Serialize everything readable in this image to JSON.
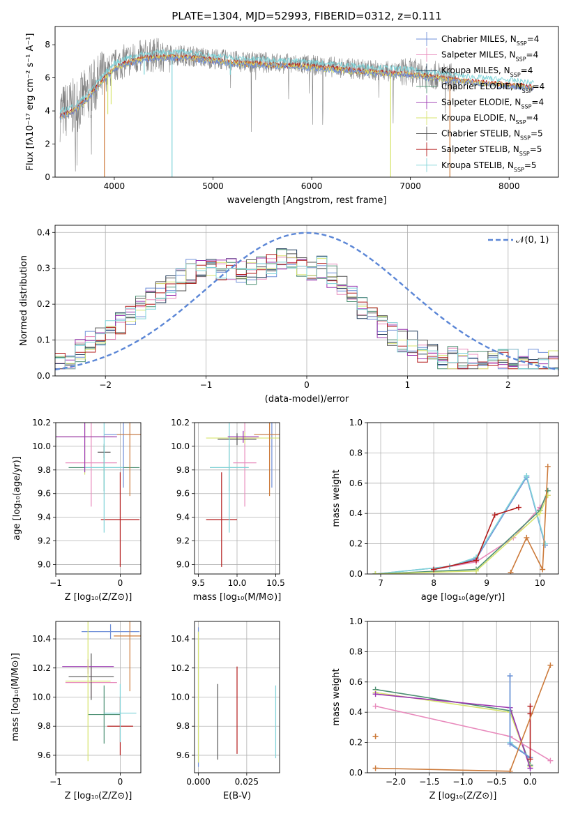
{
  "title": "PLATE=1304, MJD=52993, FIBERID=0312, z=0.111",
  "palette": {
    "chabrier_miles": "#6f8fd8",
    "salpeter_miles": "#e88abc",
    "kroupa_miles": "#1f3a5a",
    "chabrier_elodie": "#4c8f72",
    "salpeter_elodie": "#9a35b0",
    "kroupa_elodie": "#d7e46e",
    "chabrier_stelib": "#555555",
    "salpeter_stelib": "#b31b1b",
    "kroupa_stelib": "#7fd3d8",
    "gaussian": "#5b86d6",
    "orange": "#cc7a3a",
    "grid": "#b0b0b0"
  },
  "chart_data": [
    {
      "id": "spectrum",
      "type": "line",
      "xlabel": "wavelength [Angstrom, rest frame]",
      "ylabel": "Flux [fλ10⁻¹⁷ erg cm⁻² s⁻¹ A⁻¹]",
      "xlim": [
        3400,
        8500
      ],
      "ylim": [
        0,
        9.1
      ],
      "xticks": [
        4000,
        5000,
        6000,
        7000,
        8000
      ],
      "yticks": [
        0,
        2,
        4,
        6,
        8
      ],
      "grid": false,
      "legend_position": "top-right",
      "legend": [
        {
          "label": "Chabrier MILES, N",
          "sub": "SSP",
          "suffix": "=4",
          "color_key": "chabrier_miles"
        },
        {
          "label": "Salpeter MILES, N",
          "sub": "SSP",
          "suffix": "=4",
          "color_key": "salpeter_miles"
        },
        {
          "label": "Kroupa MILES, N",
          "sub": "SSP",
          "suffix": "=4",
          "color_key": "kroupa_miles"
        },
        {
          "label": "Chabrier ELODIE, N",
          "sub": "SSP",
          "suffix": "=4",
          "color_key": "chabrier_elodie"
        },
        {
          "label": "Salpeter ELODIE, N",
          "sub": "SSP",
          "suffix": "=4",
          "color_key": "salpeter_elodie"
        },
        {
          "label": "Kroupa ELODIE, N",
          "sub": "SSP",
          "suffix": "=4",
          "color_key": "kroupa_elodie"
        },
        {
          "label": "Chabrier STELIB, N",
          "sub": "SSP",
          "suffix": "=5",
          "color_key": "chabrier_stelib"
        },
        {
          "label": "Salpeter STELIB, N",
          "sub": "SSP",
          "suffix": "=5",
          "color_key": "salpeter_stelib"
        },
        {
          "label": "Kroupa STELIB, N",
          "sub": "SSP",
          "suffix": "=5",
          "color_key": "kroupa_stelib"
        }
      ],
      "continuum": {
        "x": [
          3450,
          3600,
          3700,
          3800,
          3900,
          4000,
          4100,
          4300,
          4500,
          4700,
          5000,
          5300,
          5600,
          6000,
          6300,
          6600,
          7000,
          7200,
          7400,
          7800,
          8100,
          8250
        ],
        "y": [
          3.7,
          4.1,
          4.6,
          5.3,
          6.0,
          6.6,
          6.9,
          7.2,
          7.3,
          7.3,
          7.1,
          6.9,
          6.85,
          6.7,
          6.55,
          6.4,
          6.25,
          6.1,
          5.95,
          5.7,
          5.55,
          5.45
        ]
      },
      "dips": [
        {
          "x": 3934,
          "depth": 1.2,
          "color_key": "kroupa_elodie"
        },
        {
          "x": 3968,
          "depth": 1.0,
          "color_key": "kroupa_elodie"
        },
        {
          "x": 4303,
          "depth": 0.5,
          "color_key": "kroupa_stelib"
        },
        {
          "x": 4585,
          "to_zero": true,
          "color_key": "kroupa_stelib"
        },
        {
          "x": 3900,
          "to_zero": true,
          "color_key": "orange"
        },
        {
          "x": 5175,
          "depth": 0.4,
          "color_key": "kroupa_stelib"
        },
        {
          "x": 6800,
          "to_zero": true,
          "color_key": "kroupa_elodie"
        },
        {
          "x": 7400,
          "to_zero": true,
          "color_key": "orange"
        }
      ],
      "noisy_range": [
        3400,
        7470
      ]
    },
    {
      "id": "residuals",
      "type": "histogram",
      "xlabel": "(data-model)/error",
      "ylabel": "Normed distribution",
      "xlim": [
        -2.5,
        2.5
      ],
      "ylim": [
        0,
        0.42
      ],
      "xticks": [
        -2,
        -1,
        0,
        1,
        2
      ],
      "yticks": [
        0,
        0.1,
        0.2,
        0.3,
        0.4
      ],
      "grid": true,
      "legend_position": "top-right",
      "legend_label": "𝒩(0, 1)",
      "bin_width": 0.1,
      "bin_start": -2.5,
      "base_values": [
        0.04,
        0.04,
        0.05,
        0.06,
        0.07,
        0.08,
        0.09,
        0.1,
        0.11,
        0.12,
        0.13,
        0.14,
        0.15,
        0.16,
        0.17,
        0.18,
        0.19,
        0.2,
        0.21,
        0.22,
        0.23,
        0.24,
        0.25,
        0.26,
        0.27,
        0.28,
        0.29,
        0.3,
        0.3,
        0.31,
        0.3,
        0.3,
        0.3,
        0.31,
        0.3,
        0.3,
        0.29,
        0.3,
        0.29,
        0.28,
        0.3,
        0.31,
        0.31,
        0.3,
        0.32,
        0.31,
        0.32,
        0.32,
        0.31,
        0.3,
        0.31,
        0.3,
        0.29,
        0.3,
        0.29,
        0.28,
        0.27,
        0.25,
        0.24,
        0.22,
        0.21,
        0.19,
        0.18,
        0.17,
        0.16,
        0.14,
        0.13,
        0.12,
        0.11,
        0.1,
        0.1,
        0.09,
        0.08,
        0.07,
        0.07,
        0.06,
        0.06,
        0.05,
        0.05,
        0.05,
        0.04,
        0.04,
        0.04,
        0.04,
        0.04,
        0.04,
        0.04,
        0.04,
        0.04,
        0.04,
        0.04,
        0.04,
        0.04,
        0.04,
        0.04,
        0.04,
        0.04,
        0.04,
        0.04,
        0.04
      ]
    },
    {
      "id": "age_vs_Z",
      "type": "scatter",
      "xlabel": "Z [log₁₀(Z/Z⊙)]",
      "ylabel": "age  [log₁₀(age/yr)]",
      "xlim": [
        -1,
        0.32
      ],
      "ylim": [
        8.92,
        10.2
      ],
      "xticks": [
        -1,
        0
      ],
      "yticks": [
        9.0,
        9.2,
        9.4,
        9.6,
        9.8,
        10.0,
        10.2
      ],
      "grid": true,
      "points": [
        {
          "x": 0.05,
          "y": 10.1,
          "xerr": 0.3,
          "yerr": 0.45,
          "color_key": "chabrier_miles"
        },
        {
          "x": -0.45,
          "y": 9.86,
          "xerr": 0.4,
          "yerr": 0.37,
          "color_key": "salpeter_miles"
        },
        {
          "x": -0.25,
          "y": 9.82,
          "xerr": 0.55,
          "yerr": 0.2,
          "color_key": "chabrier_elodie"
        },
        {
          "x": -0.55,
          "y": 10.08,
          "xerr": 0.45,
          "yerr": 0.32,
          "color_key": "kroupa_elodie"
        },
        {
          "x": -0.25,
          "y": 9.95,
          "xerr": 0.1,
          "yerr": 0.05,
          "color_key": "chabrier_stelib"
        },
        {
          "x": 0.0,
          "y": 9.38,
          "xerr": 0.3,
          "yerr": 0.4,
          "color_key": "salpeter_stelib"
        },
        {
          "x": -0.25,
          "y": 9.82,
          "xerr": 0.3,
          "yerr": 0.55,
          "color_key": "kroupa_stelib"
        },
        {
          "x": 0.15,
          "y": 10.1,
          "xerr": 0.2,
          "yerr": 0.52,
          "color_key": "orange"
        },
        {
          "x": -0.55,
          "y": 10.08,
          "xerr": 0.5,
          "yerr": 0.3,
          "color_key": "salpeter_elodie"
        }
      ]
    },
    {
      "id": "age_vs_mass",
      "type": "scatter",
      "xlabel": "mass [log₁₀(M/M⊙)]",
      "ylabel": "",
      "xlim": [
        9.45,
        10.55
      ],
      "ylim": [
        8.92,
        10.2
      ],
      "xticks": [
        9.5,
        10.0,
        10.5
      ],
      "yticks": [
        9.0,
        9.2,
        9.4,
        9.6,
        9.8,
        10.0,
        10.2
      ],
      "grid": true,
      "points": [
        {
          "x": 10.45,
          "y": 10.1,
          "xerr": 0.15,
          "yerr": 0.45,
          "color_key": "chabrier_miles"
        },
        {
          "x": 10.1,
          "y": 9.86,
          "xerr": 0.15,
          "yerr": 0.37,
          "color_key": "salpeter_miles"
        },
        {
          "x": 9.9,
          "y": 9.82,
          "xerr": 0.25,
          "yerr": 0.2,
          "color_key": "chabrier_elodie"
        },
        {
          "x": 10.1,
          "y": 10.07,
          "xerr": 0.5,
          "yerr": 0.05,
          "color_key": "kroupa_elodie"
        },
        {
          "x": 10.0,
          "y": 10.06,
          "xerr": 0.25,
          "yerr": 0.05,
          "color_key": "chabrier_stelib"
        },
        {
          "x": 9.8,
          "y": 9.38,
          "xerr": 0.2,
          "yerr": 0.4,
          "color_key": "salpeter_stelib"
        },
        {
          "x": 9.9,
          "y": 9.82,
          "xerr": 0.25,
          "yerr": 0.55,
          "color_key": "kroupa_stelib"
        },
        {
          "x": 10.42,
          "y": 10.1,
          "xerr": 0.2,
          "yerr": 0.52,
          "color_key": "orange"
        },
        {
          "x": 10.08,
          "y": 10.08,
          "xerr": 0.2,
          "yerr": 0.05,
          "color_key": "salpeter_elodie"
        }
      ]
    },
    {
      "id": "weight_vs_age",
      "type": "line",
      "xlabel": "age  [log₁₀(age/yr)]",
      "ylabel": "mass weight",
      "xlim": [
        6.75,
        10.35
      ],
      "ylim": [
        0,
        1.0
      ],
      "xticks": [
        7,
        8,
        9,
        10
      ],
      "yticks": [
        0.0,
        0.2,
        0.4,
        0.6,
        0.8,
        1.0
      ],
      "grid": true,
      "series": [
        {
          "color_key": "chabrier_miles",
          "x": [
            6.9,
            8.3,
            8.8,
            9.75,
            10.1
          ],
          "y": [
            0.0,
            0.05,
            0.1,
            0.64,
            0.19
          ]
        },
        {
          "color_key": "salpeter_miles",
          "x": [
            8.0,
            8.8,
            9.5,
            10.0,
            10.15
          ],
          "y": [
            0.03,
            0.08,
            0.24,
            0.44,
            0.52
          ]
        },
        {
          "color_key": "kroupa_stelib",
          "x": [
            6.9,
            8.3,
            8.8,
            9.75,
            10.1
          ],
          "y": [
            0.0,
            0.05,
            0.11,
            0.65,
            0.2
          ]
        },
        {
          "color_key": "chabrier_elodie",
          "x": [
            6.9,
            8.8,
            10.0,
            10.15
          ],
          "y": [
            0.0,
            0.03,
            0.42,
            0.55
          ]
        },
        {
          "color_key": "kroupa_elodie",
          "x": [
            6.9,
            8.8,
            10.0,
            10.15
          ],
          "y": [
            0.0,
            0.02,
            0.4,
            0.52
          ]
        },
        {
          "color_key": "salpeter_stelib",
          "x": [
            8.0,
            8.8,
            9.15,
            9.6
          ],
          "y": [
            0.03,
            0.09,
            0.39,
            0.44
          ]
        },
        {
          "color_key": "orange",
          "x": [
            9.45,
            9.75,
            10.05,
            10.15
          ],
          "y": [
            0.01,
            0.24,
            0.03,
            0.71
          ]
        }
      ]
    },
    {
      "id": "mass_vs_Z",
      "type": "scatter",
      "xlabel": "Z [log₁₀(Z/Z⊙)]",
      "ylabel": "mass [log₁₀(M/M⊙)]",
      "xlim": [
        -1,
        0.32
      ],
      "ylim": [
        9.48,
        10.52
      ],
      "xticks": [
        -1,
        0
      ],
      "yticks": [
        9.6,
        9.8,
        10.0,
        10.2,
        10.4
      ],
      "grid": true,
      "points": [
        {
          "x": -0.15,
          "y": 10.45,
          "xerr": 0.45,
          "yerr": 0.05,
          "color_key": "chabrier_miles"
        },
        {
          "x": -0.45,
          "y": 10.1,
          "xerr": 0.4,
          "yerr": 0.1,
          "color_key": "salpeter_miles"
        },
        {
          "x": -0.45,
          "y": 10.14,
          "xerr": 0.35,
          "yerr": 0.16,
          "color_key": "chabrier_stelib"
        },
        {
          "x": -0.5,
          "y": 10.21,
          "xerr": 0.4,
          "yerr": 0.05,
          "color_key": "salpeter_elodie"
        },
        {
          "x": -0.25,
          "y": 9.88,
          "xerr": 0.25,
          "yerr": 0.2,
          "color_key": "chabrier_elodie"
        },
        {
          "x": -0.5,
          "y": 10.11,
          "xerr": 0.35,
          "yerr": 0.55,
          "color_key": "kroupa_elodie"
        },
        {
          "x": 0.0,
          "y": 9.8,
          "xerr": 0.2,
          "yerr": 0.2,
          "color_key": "salpeter_stelib"
        },
        {
          "x": 0.0,
          "y": 9.89,
          "xerr": 0.25,
          "yerr": 0.2,
          "color_key": "kroupa_stelib"
        },
        {
          "x": 0.15,
          "y": 10.42,
          "xerr": 0.25,
          "yerr": 0.38,
          "color_key": "orange"
        }
      ]
    },
    {
      "id": "mass_vs_ebv",
      "type": "scatter",
      "xlabel": "E(B-V)",
      "ylabel": "",
      "xlim": [
        -0.002,
        0.042
      ],
      "ylim": [
        9.48,
        10.52
      ],
      "xticks": [
        0.0,
        0.025
      ],
      "xtick_labels": [
        "0.000",
        "0.025"
      ],
      "yticks": [
        9.6,
        9.8,
        10.0,
        10.2,
        10.4
      ],
      "grid": true,
      "points": [
        {
          "x": 0.0,
          "y": 10.0,
          "xerr": 0,
          "yerr": 0.48,
          "color_key": "chabrier_miles"
        },
        {
          "x": 0.0,
          "y": 10.0,
          "xerr": 0,
          "yerr": 0.45,
          "color_key": "kroupa_elodie"
        },
        {
          "x": 0.01,
          "y": 9.83,
          "xerr": 0,
          "yerr": 0.26,
          "color_key": "chabrier_stelib"
        },
        {
          "x": 0.02,
          "y": 9.91,
          "xerr": 0,
          "yerr": 0.3,
          "color_key": "salpeter_stelib"
        },
        {
          "x": 0.04,
          "y": 9.83,
          "xerr": 0,
          "yerr": 0.25,
          "color_key": "kroupa_stelib"
        }
      ]
    },
    {
      "id": "weight_vs_Z",
      "type": "line",
      "xlabel": "Z [log₁₀(Z/Z⊙)]",
      "ylabel": "mass weight",
      "xlim": [
        -2.42,
        0.42
      ],
      "ylim": [
        0,
        1.0
      ],
      "xticks": [
        -2.0,
        -1.5,
        -1.0,
        -0.5,
        0.0
      ],
      "yticks": [
        0.0,
        0.2,
        0.4,
        0.6,
        0.8,
        1.0
      ],
      "grid": true,
      "series": [
        {
          "color_key": "chabrier_elodie",
          "x": [
            -2.3,
            -0.3,
            0.0
          ],
          "y": [
            0.55,
            0.41,
            0.05
          ]
        },
        {
          "color_key": "kroupa_elodie",
          "x": [
            -2.3,
            -0.3,
            0.0
          ],
          "y": [
            0.53,
            0.4,
            0.04
          ]
        },
        {
          "color_key": "salpeter_elodie",
          "x": [
            -2.3,
            -0.3,
            0.0
          ],
          "y": [
            0.52,
            0.43,
            0.03
          ]
        },
        {
          "color_key": "salpeter_miles",
          "x": [
            -2.3,
            -0.3,
            0.3
          ],
          "y": [
            0.44,
            0.24,
            0.08
          ]
        },
        {
          "color_key": "kroupa_stelib",
          "x": [
            -0.3,
            -0.3,
            0.0
          ],
          "y": [
            0.64,
            0.2,
            0.1
          ]
        },
        {
          "color_key": "chabrier_miles",
          "x": [
            -0.3,
            -0.3,
            0.0
          ],
          "y": [
            0.64,
            0.19,
            0.1
          ]
        },
        {
          "color_key": "salpeter_stelib",
          "x": [
            0.0,
            0.0,
            0.0
          ],
          "y": [
            0.44,
            0.39,
            0.09
          ]
        },
        {
          "color_key": "orange",
          "x": [
            -2.3,
            -0.3,
            0.3
          ],
          "y": [
            0.03,
            0.01,
            0.71
          ]
        },
        {
          "color_key": "orange",
          "x": [
            -2.3,
            -2.3
          ],
          "y": [
            0.24,
            0.24
          ]
        }
      ]
    }
  ]
}
